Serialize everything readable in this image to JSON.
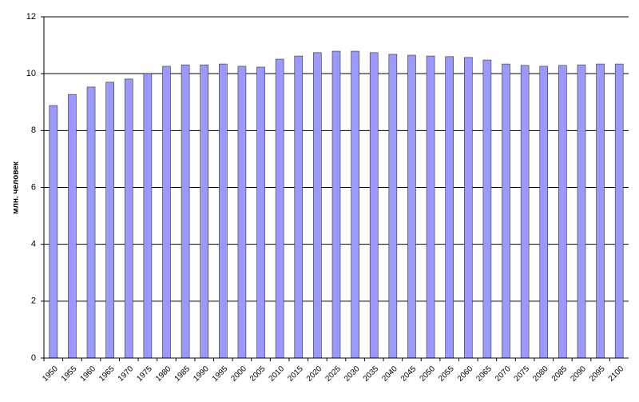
{
  "chart_data": {
    "type": "bar",
    "y_label": "млн. человек",
    "categories": [
      "1950",
      "1955",
      "1960",
      "1965",
      "1970",
      "1975",
      "1980",
      "1985",
      "1990",
      "1995",
      "2000",
      "2005",
      "2010",
      "2015",
      "2020",
      "2025",
      "2030",
      "2035",
      "2040",
      "2045",
      "2050",
      "2055",
      "2060",
      "2065",
      "2070",
      "2075",
      "2080",
      "2085",
      "2090",
      "2095",
      "2100"
    ],
    "values": [
      8.88,
      9.27,
      9.53,
      9.7,
      9.81,
      10.0,
      10.26,
      10.31,
      10.31,
      10.34,
      10.26,
      10.23,
      10.51,
      10.62,
      10.74,
      10.79,
      10.79,
      10.74,
      10.68,
      10.65,
      10.62,
      10.6,
      10.57,
      10.48,
      10.34,
      10.29,
      10.26,
      10.29,
      10.31,
      10.34,
      10.34
    ],
    "color": "#9999ff",
    "ylim": [
      0,
      12
    ],
    "yticks": [
      0,
      2,
      4,
      6,
      8,
      10,
      12
    ],
    "grid": true
  }
}
